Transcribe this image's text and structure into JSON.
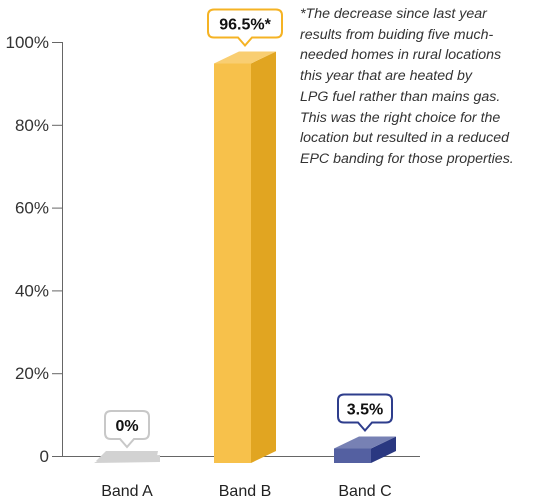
{
  "chart_data": {
    "type": "bar",
    "categories": [
      "Band A",
      "Band B",
      "Band C"
    ],
    "values": [
      0,
      96.5,
      3.5
    ],
    "value_labels": [
      "0%",
      "96.5%*",
      "3.5%"
    ],
    "bar_colors": [
      "#d2d2d2",
      "#f5b324",
      "#2e3d8c"
    ],
    "callout_border_colors": [
      "#c8c8c8",
      "#f5b324",
      "#2e3d8c"
    ],
    "ylim": [
      0,
      100
    ],
    "y_ticks": [
      0,
      20,
      40,
      60,
      80,
      100
    ],
    "y_tick_labels": [
      "0",
      "20%",
      "40%",
      "60%",
      "80%",
      "100%"
    ],
    "grid": false,
    "annotation_lines": [
      "*The decrease since last year",
      "results from buiding five much-",
      "needed homes in rural locations",
      "this year that are heated by",
      "LPG fuel rather than mains gas.",
      "This was the right choice for the",
      "location but resulted in a reduced",
      "EPC banding for those properties."
    ]
  }
}
